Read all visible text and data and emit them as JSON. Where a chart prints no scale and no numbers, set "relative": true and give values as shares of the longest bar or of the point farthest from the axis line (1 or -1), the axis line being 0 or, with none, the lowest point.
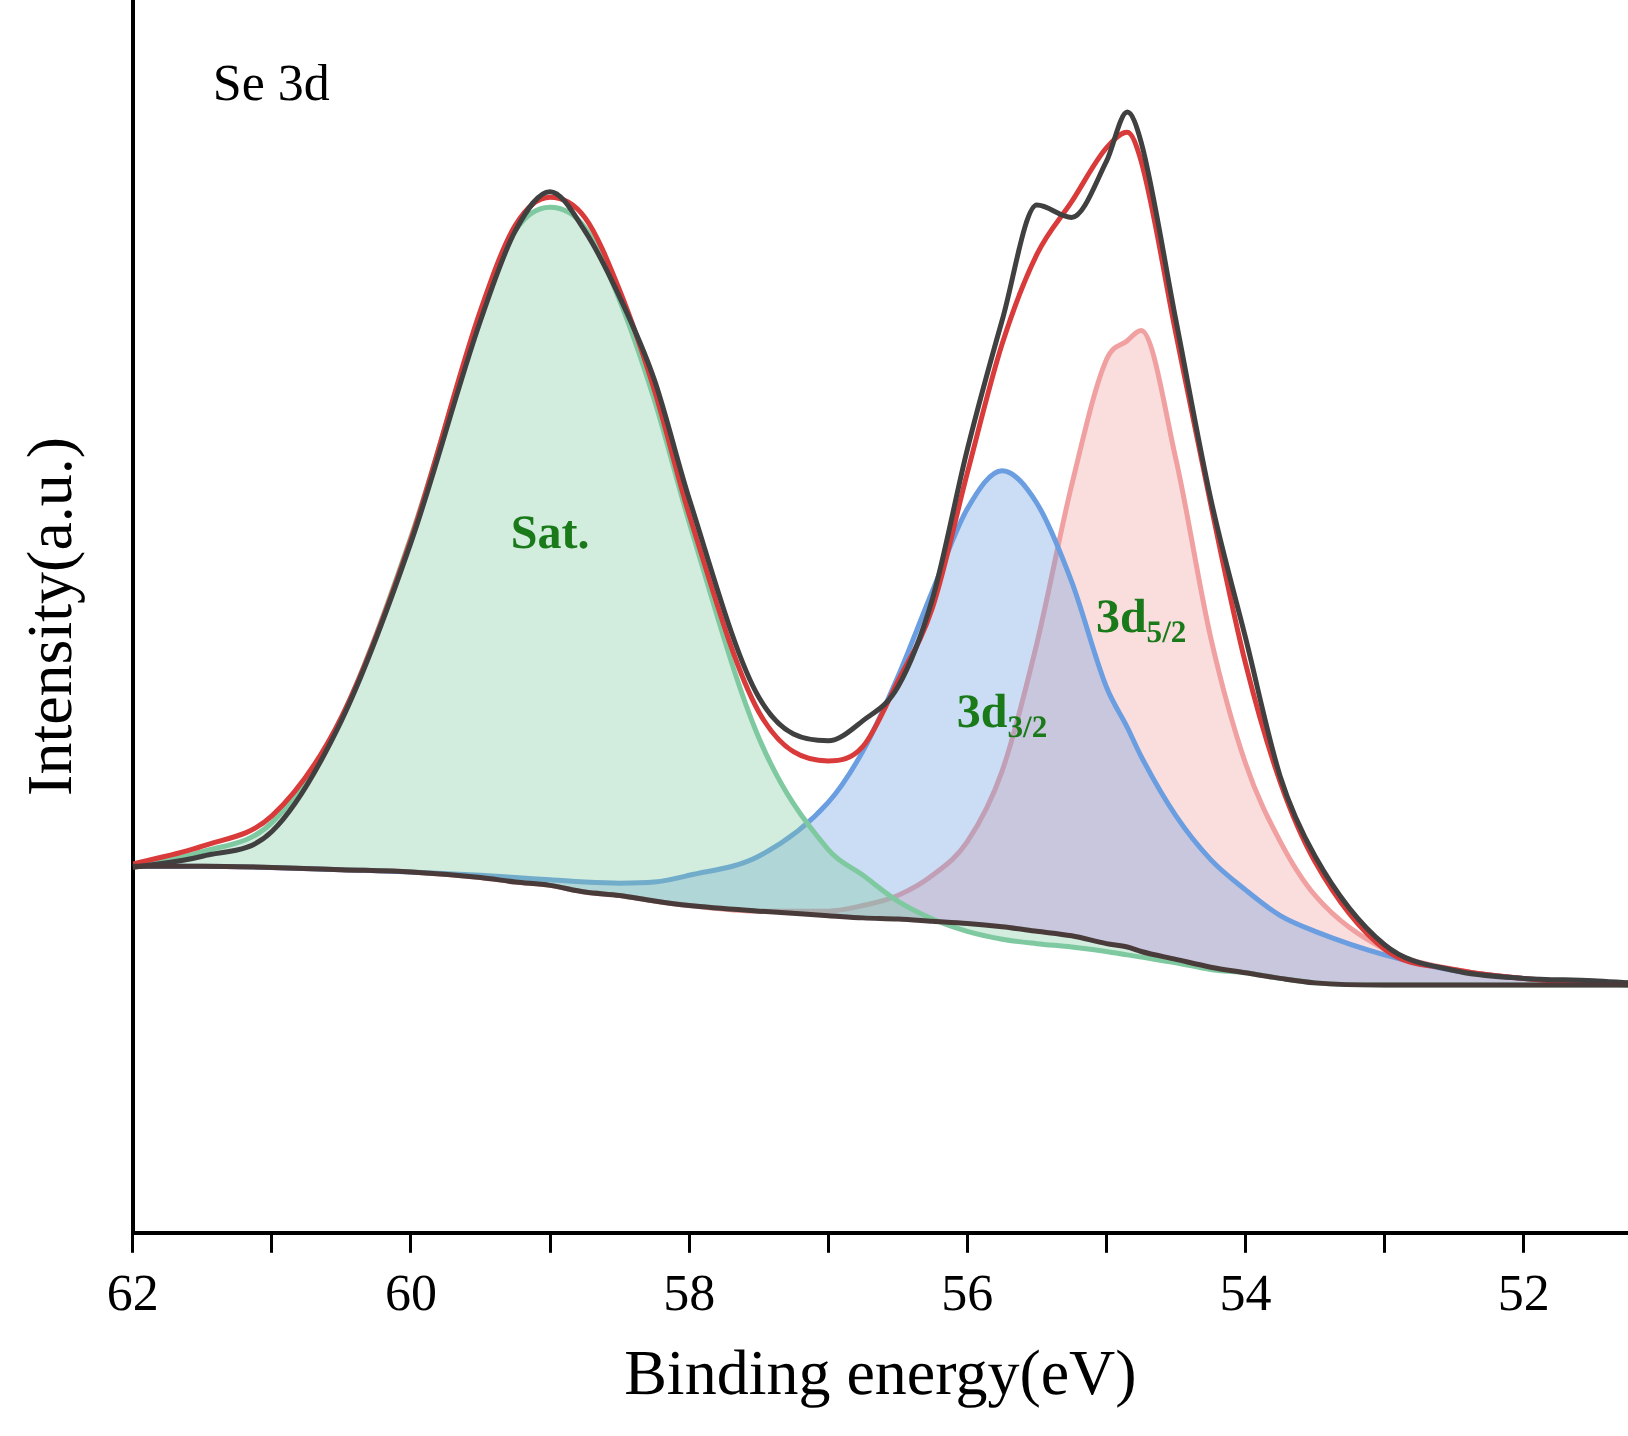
{
  "chart_data": {
    "type": "line",
    "title": "Se 3d",
    "xlabel": "Binding energy(eV)",
    "ylabel": "Intensity(a.u.)",
    "relative": true,
    "legend": false,
    "grid": false,
    "marker": "none",
    "xlim": [
      62,
      51.25
    ],
    "xticks": [
      62,
      {
        "value": 61,
        "label": null
      },
      60,
      {
        "value": 59,
        "label": null
      },
      58,
      {
        "value": 57,
        "label": null
      },
      56,
      {
        "value": 55,
        "label": null
      },
      54,
      {
        "value": 53,
        "label": null
      },
      52
    ],
    "x": [
      62,
      61.5,
      61,
      60.5,
      60,
      59.5,
      59.25,
      59,
      58.75,
      58.5,
      58.25,
      58,
      57.5,
      57,
      56.75,
      56.5,
      56.25,
      56,
      55.75,
      55.5,
      55.25,
      55,
      54.85,
      54.75,
      54.5,
      54.25,
      54,
      53.75,
      53.5,
      53,
      52.5,
      52,
      51.5,
      51.25
    ],
    "series": [
      {
        "color": "#4a3b3b",
        "values": [
          0.327,
          0.327,
          0.326,
          0.324,
          0.322,
          0.317,
          0.313,
          0.31,
          0.304,
          0.301,
          0.296,
          0.292,
          0.287,
          0.283,
          0.281,
          0.28,
          0.278,
          0.276,
          0.273,
          0.269,
          0.265,
          0.258,
          0.255,
          0.251,
          0.244,
          0.237,
          0.232,
          0.227,
          0.223,
          0.221,
          0.221,
          0.221,
          0.221,
          0.221
        ]
      },
      {
        "type": "area",
        "name": "Sat.",
        "color": "#7fc9a0",
        "values": [
          0.327,
          0.34,
          0.366,
          0.46,
          0.621,
          0.819,
          0.894,
          0.915,
          0.897,
          0.832,
          0.743,
          0.634,
          0.442,
          0.342,
          0.319,
          0.296,
          0.28,
          0.269,
          0.262,
          0.258,
          0.255,
          0.251,
          0.248,
          0.246,
          0.241,
          0.235,
          0.232,
          0.227,
          0.223,
          0.221,
          0.221,
          0.221,
          0.221,
          0.221
        ]
      },
      {
        "type": "area",
        "name": "3d$_{3/2}$",
        "color": "#6a9ee0",
        "values": [
          0.327,
          0.327,
          0.326,
          0.324,
          0.322,
          0.319,
          0.317,
          0.315,
          0.313,
          0.312,
          0.313,
          0.319,
          0.336,
          0.384,
          0.43,
          0.496,
          0.573,
          0.646,
          0.68,
          0.651,
          0.581,
          0.487,
          0.451,
          0.425,
          0.372,
          0.333,
          0.306,
          0.283,
          0.269,
          0.248,
          0.234,
          0.227,
          0.223,
          0.221
        ]
      },
      {
        "type": "area",
        "name": "3d$_{5/2}$",
        "color": "#f0a0a0",
        "values": [
          0.327,
          0.327,
          0.326,
          0.324,
          0.322,
          0.317,
          0.313,
          0.31,
          0.304,
          0.301,
          0.296,
          0.292,
          0.287,
          0.287,
          0.292,
          0.301,
          0.319,
          0.349,
          0.412,
          0.526,
          0.667,
          0.779,
          0.796,
          0.805,
          0.69,
          0.531,
          0.419,
          0.349,
          0.301,
          0.253,
          0.235,
          0.227,
          0.223,
          0.221
        ]
      },
      {
        "color": "#404040",
        "values": [
          0.326,
          0.336,
          0.358,
          0.457,
          0.616,
          0.814,
          0.894,
          0.929,
          0.894,
          0.835,
          0.761,
          0.655,
          0.478,
          0.439,
          0.457,
          0.487,
          0.566,
          0.699,
          0.814,
          0.917,
          0.906,
          0.956,
          1.0,
          0.973,
          0.814,
          0.655,
          0.531,
          0.407,
          0.336,
          0.257,
          0.234,
          0.227,
          0.225,
          0.223
        ]
      },
      {
        "color": "#d93a3a",
        "values": [
          0.329,
          0.345,
          0.372,
          0.46,
          0.619,
          0.823,
          0.899,
          0.924,
          0.906,
          0.841,
          0.752,
          0.641,
          0.465,
          0.421,
          0.434,
          0.492,
          0.558,
          0.678,
          0.793,
          0.873,
          0.92,
          0.968,
          0.982,
          0.956,
          0.802,
          0.65,
          0.508,
          0.402,
          0.331,
          0.253,
          0.235,
          0.227,
          0.223,
          0.223
        ]
      }
    ]
  }
}
